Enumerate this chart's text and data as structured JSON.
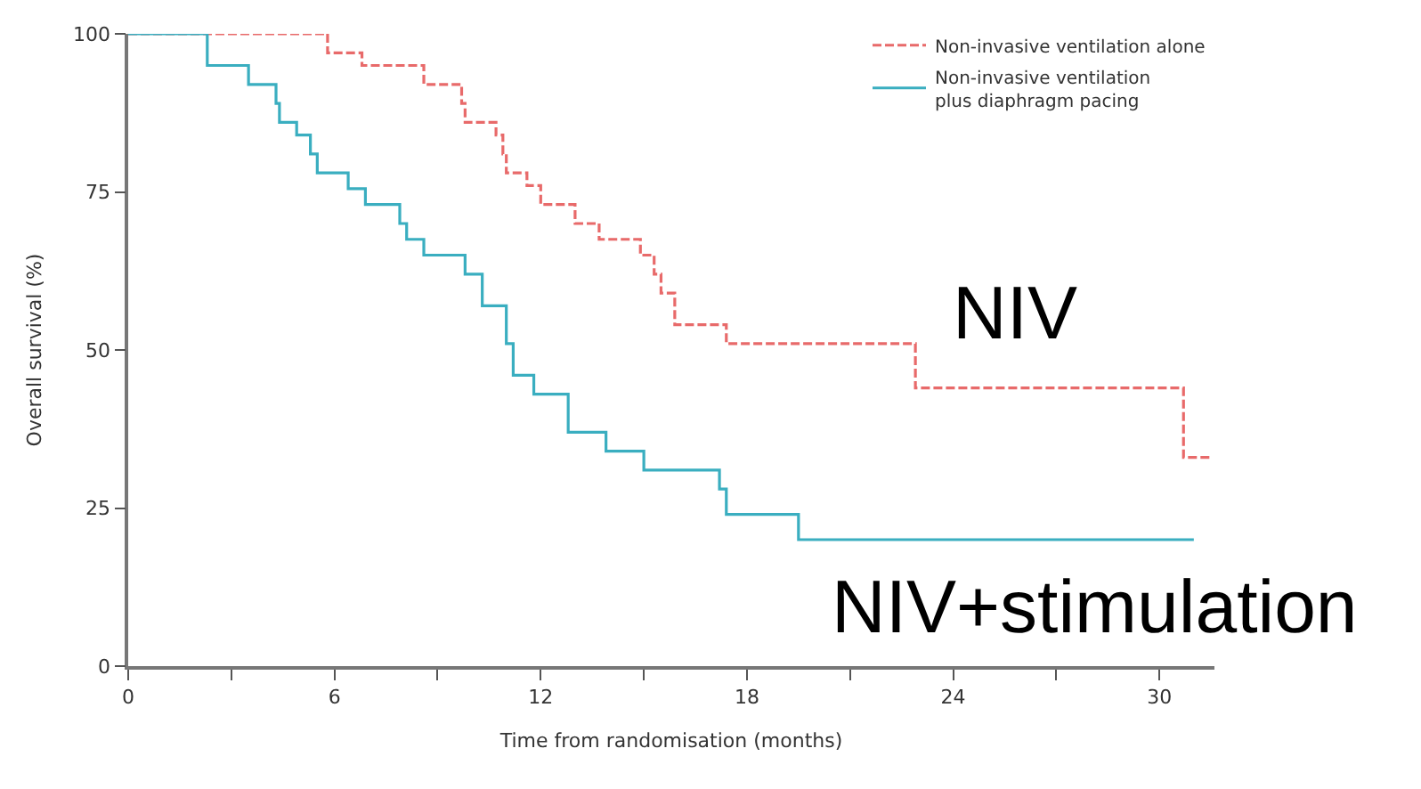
{
  "chart_data": {
    "type": "step",
    "xlabel": "Time from randomisation (months)",
    "ylabel": "Overall survival (%)",
    "xlim": [
      0,
      31.6
    ],
    "ylim": [
      0,
      100
    ],
    "xticks": [
      0,
      {
        "value": 3,
        "label": null
      },
      6,
      {
        "value": 9,
        "label": null
      },
      12,
      {
        "value": 15,
        "label": null
      },
      18,
      {
        "value": 21,
        "label": null
      },
      24,
      {
        "value": 27,
        "label": null
      },
      30
    ],
    "yticks": [
      0,
      25,
      50,
      75,
      100
    ],
    "legend": "top right",
    "series": [
      {
        "name": "Non-invasive ventilation alone",
        "color": "#e86a6a",
        "line_style": "dashed",
        "x": [
          0,
          5.8,
          6.8,
          8.6,
          9.7,
          9.8,
          10.7,
          10.9,
          11.0,
          11.6,
          12.0,
          13.0,
          13.7,
          14.9,
          15.3,
          15.5,
          15.9,
          17.4,
          22.9,
          30.7,
          31.5
        ],
        "values": [
          100,
          97,
          95,
          92,
          89,
          86,
          84,
          81,
          78,
          76,
          73,
          70,
          67.5,
          65,
          62,
          59,
          54,
          51,
          44,
          33,
          33
        ]
      },
      {
        "name": "Non-invasive ventilation\nplus diaphragm pacing",
        "color": "#3aaec0",
        "line_style": "solid",
        "x": [
          0,
          2.3,
          3.5,
          4.3,
          4.4,
          4.9,
          5.3,
          5.5,
          6.4,
          6.9,
          7.9,
          8.1,
          8.6,
          9.8,
          10.3,
          11.0,
          11.2,
          11.8,
          12.8,
          13.9,
          15.0,
          17.2,
          17.4,
          19.5,
          31.0
        ],
        "values": [
          100,
          95,
          92,
          89,
          86,
          84,
          81,
          78,
          75.5,
          73,
          70,
          67.5,
          65,
          62,
          57,
          51,
          46,
          43,
          37,
          34,
          31,
          28,
          24,
          20,
          20
        ]
      }
    ],
    "annotations": [
      "NIV",
      "NIV+stimulation"
    ]
  }
}
